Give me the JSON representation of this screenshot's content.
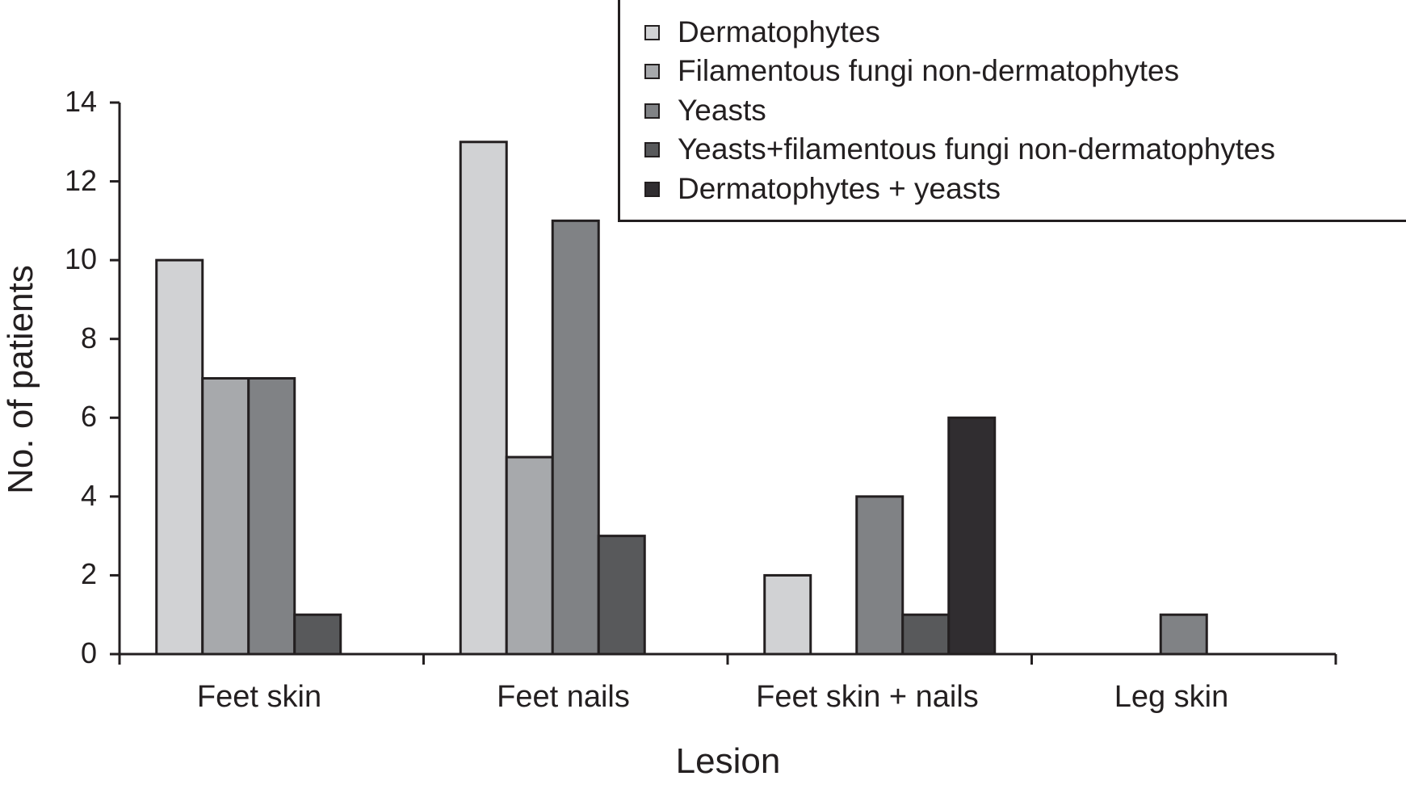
{
  "chart_data": {
    "type": "bar",
    "title": "",
    "xlabel": "Lesion",
    "ylabel": "No. of patients",
    "ylim": [
      0,
      14
    ],
    "yticks": [
      0,
      2,
      4,
      6,
      8,
      10,
      12,
      14
    ],
    "grid": false,
    "legend_position": "top-right",
    "categories": [
      "Feet skin",
      "Feet nails",
      "Feet skin + nails",
      "Leg skin"
    ],
    "series": [
      {
        "name": "Dermatophytes",
        "color": "#d1d2d4",
        "values": [
          10,
          13,
          2,
          0
        ]
      },
      {
        "name": "Filamentous fungi non-dermatophytes",
        "color": "#a7a9ac",
        "values": [
          7,
          5,
          0,
          0
        ]
      },
      {
        "name": "Yeasts",
        "color": "#808285",
        "values": [
          7,
          11,
          4,
          1
        ]
      },
      {
        "name": "Yeasts+filamentous fungi non-dermatophytes",
        "color": "#58595b",
        "values": [
          1,
          3,
          1,
          0
        ]
      },
      {
        "name": "Dermatophytes + yeasts",
        "color": "#302d30",
        "values": [
          0,
          0,
          6,
          0
        ]
      }
    ]
  }
}
